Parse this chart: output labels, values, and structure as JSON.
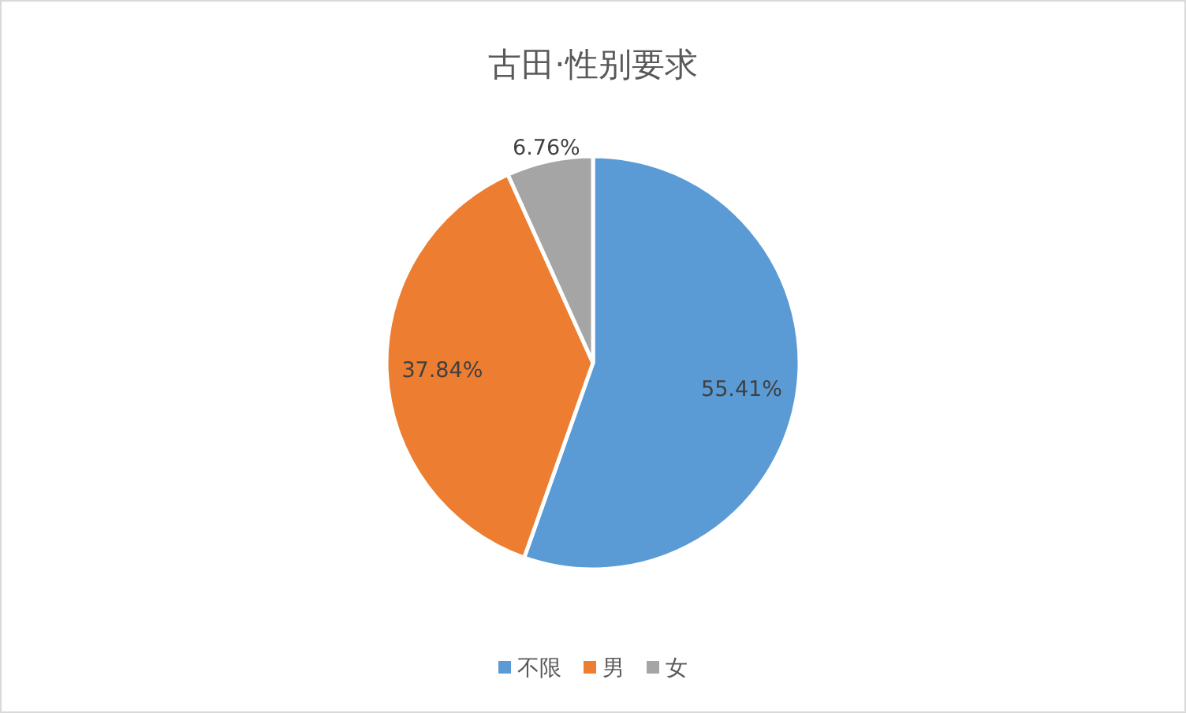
{
  "chart_data": {
    "type": "pie",
    "title": "古田·性别要求",
    "categories": [
      "不限",
      "男",
      "女"
    ],
    "values": [
      55.41,
      37.84,
      6.76
    ],
    "colors": [
      "#5b9bd5",
      "#ed7d31",
      "#a5a5a5"
    ],
    "value_labels": [
      "55.41%",
      "37.84%",
      "6.76%"
    ],
    "legend": "bottom"
  }
}
